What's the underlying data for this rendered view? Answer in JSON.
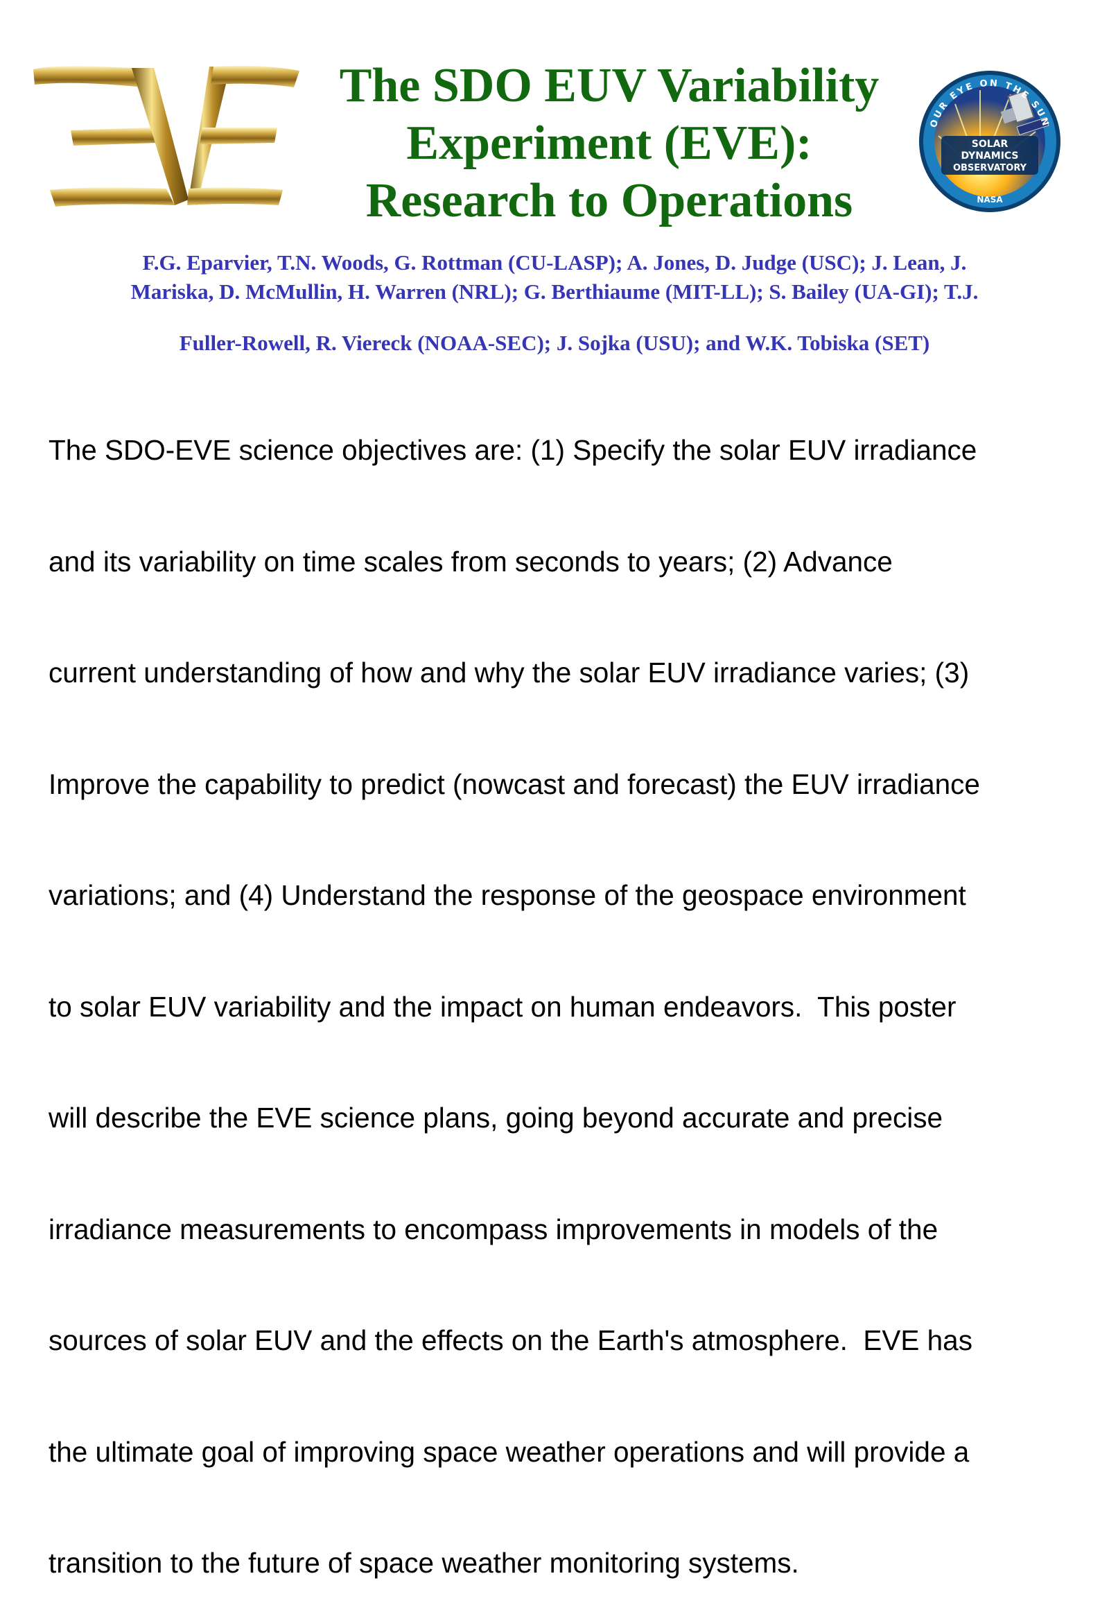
{
  "header": {
    "title_lines": [
      "The SDO EUV Variability",
      "Experiment (EVE):",
      "Research to Operations"
    ]
  },
  "logos": {
    "eve": {
      "text": "EVE",
      "icon": "eve-gold-logo-icon",
      "colors": {
        "gold_light": "#fff0b0",
        "gold_mid": "#c9a23a",
        "gold_dark": "#6b4f10"
      }
    },
    "sdo": {
      "icon": "sdo-mission-patch-icon",
      "ring_top_text": "OUR EYE ON THE SUN",
      "center_lines": [
        "SOLAR",
        "DYNAMICS",
        "OBSERVATORY"
      ],
      "bottom_text": "NASA",
      "colors": {
        "ring": "#0f5b8f",
        "sun": "#ffd21a",
        "sky": "#3aa8e8"
      }
    }
  },
  "authors": {
    "lines": [
      "F.G. Eparvier, T.N. Woods, G. Rottman (CU-LASP); A. Jones, D. Judge (USC); J. Lean, J.",
      "Mariska, D. McMullin, H. Warren (NRL); G. Berthiaume (MIT-LL); S. Bailey (UA-GI); T.J.",
      "Fuller-Rowell, R. Viereck (NOAA-SEC); J. Sojka (USU); and W.K. Tobiska (SET)"
    ]
  },
  "abstract": {
    "lines": [
      "The SDO-EVE science objectives are: (1) Specify the solar EUV irradiance",
      "and its variability on time scales from seconds to years; (2) Advance",
      "current understanding of how and why the solar EUV irradiance varies; (3)",
      "Improve the capability to predict (nowcast and forecast) the EUV irradiance",
      "variations; and (4) Understand the response of the geospace environment",
      "to solar EUV variability and the impact on human endeavors.  This poster",
      "will describe the EVE science plans, going beyond accurate and precise",
      "irradiance measurements to encompass improvements in models of the",
      "sources of solar EUV and the effects on the Earth's atmosphere.  EVE has",
      "the ultimate goal of improving space weather operations and will provide a",
      "transition to the future of space weather monitoring systems."
    ]
  },
  "colors": {
    "title": "#12680e",
    "authors": "#3535b5",
    "body": "#000000"
  }
}
